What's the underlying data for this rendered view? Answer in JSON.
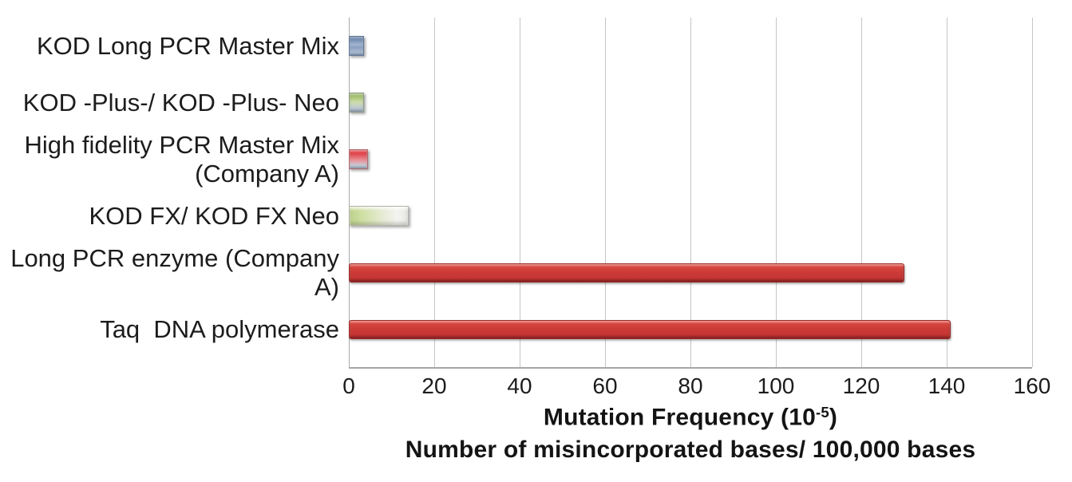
{
  "chart_data": {
    "type": "bar",
    "orientation": "horizontal",
    "categories": [
      "KOD Long PCR Master Mix",
      "KOD -Plus-/ KOD -Plus- Neo",
      "High fidelity PCR Master Mix (Company A)",
      "KOD FX/ KOD FX Neo",
      "Long PCR enzyme (Company A)",
      "Taq  DNA polymerase"
    ],
    "values": [
      3.5,
      3.5,
      4.5,
      14,
      130,
      141
    ],
    "bar_styles": [
      "blue-gloss",
      "green-gloss",
      "red-gloss",
      "lightgreen-gloss",
      "red-solid",
      "red-solid"
    ],
    "bar_colors": [
      "#5b79a5",
      "#9dbb66",
      "#e03a3e",
      "#cde0a6",
      "#cc3a38",
      "#cc3a38"
    ],
    "xlim": [
      0,
      160
    ],
    "x_ticks": [
      "0",
      "20",
      "40",
      "60",
      "80",
      "100",
      "120",
      "140",
      "160"
    ],
    "grid": "vertical-gridlines-on",
    "legend": "none",
    "xlabel": "Mutation Frequency (10⁻⁵)",
    "xlabel_parts": {
      "prefix": "Mutation Frequency (10",
      "superscript": "-5",
      "suffix": ")"
    },
    "xlabel_line2": "Number of misincorporated bases/ 100,000 bases",
    "colors": {
      "gridline": "#c6c6c6",
      "axis_line": "#a6a6a6",
      "text": "#1c1c1c"
    }
  }
}
